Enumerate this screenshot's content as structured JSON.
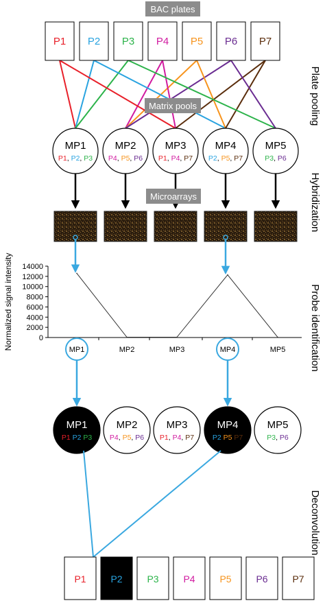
{
  "labels": {
    "bac_plates": "BAC plates",
    "matrix_pools": "Matrix pools",
    "microarrays": "Microarrays"
  },
  "stages": {
    "plate_pooling": "Plate pooling",
    "hybridization": "Hybridization",
    "probe_identification": "Probe identification",
    "deconvolution": "Deconvolution"
  },
  "plate_colors": {
    "P1": "#e8202a",
    "P2": "#29a3e0",
    "P3": "#2cb34a",
    "P4": "#d11ba0",
    "P5": "#f7941d",
    "P6": "#6a2c91",
    "P7": "#5a2d0c"
  },
  "plates": [
    "P1",
    "P2",
    "P3",
    "P4",
    "P5",
    "P6",
    "P7"
  ],
  "pools": [
    {
      "name": "MP1",
      "members": [
        "P1",
        "P2",
        "P3"
      ]
    },
    {
      "name": "MP2",
      "members": [
        "P4",
        "P5",
        "P6"
      ]
    },
    {
      "name": "MP3",
      "members": [
        "P1",
        "P4",
        "P7"
      ]
    },
    {
      "name": "MP4",
      "members": [
        "P2",
        "P5",
        "P7"
      ]
    },
    {
      "name": "MP5",
      "members": [
        "P3",
        "P6"
      ]
    }
  ],
  "positive_pools": [
    "MP1",
    "MP4"
  ],
  "identified_plate": "P2",
  "colors": {
    "header_bg": "#8c8c8c",
    "arrow_blue": "#3aa8e0",
    "positive_fill": "#000000"
  },
  "chart_data": {
    "type": "line",
    "categories": [
      "MP1",
      "MP2",
      "MP3",
      "MP4",
      "MP5"
    ],
    "values": [
      12600,
      60,
      60,
      12300,
      60
    ],
    "ylabel": "Normalized signal intensity",
    "xlabel": "",
    "ylim": [
      0,
      14000
    ],
    "yticks": [
      0,
      2000,
      4000,
      6000,
      8000,
      10000,
      12000,
      14000
    ],
    "grid": false
  }
}
